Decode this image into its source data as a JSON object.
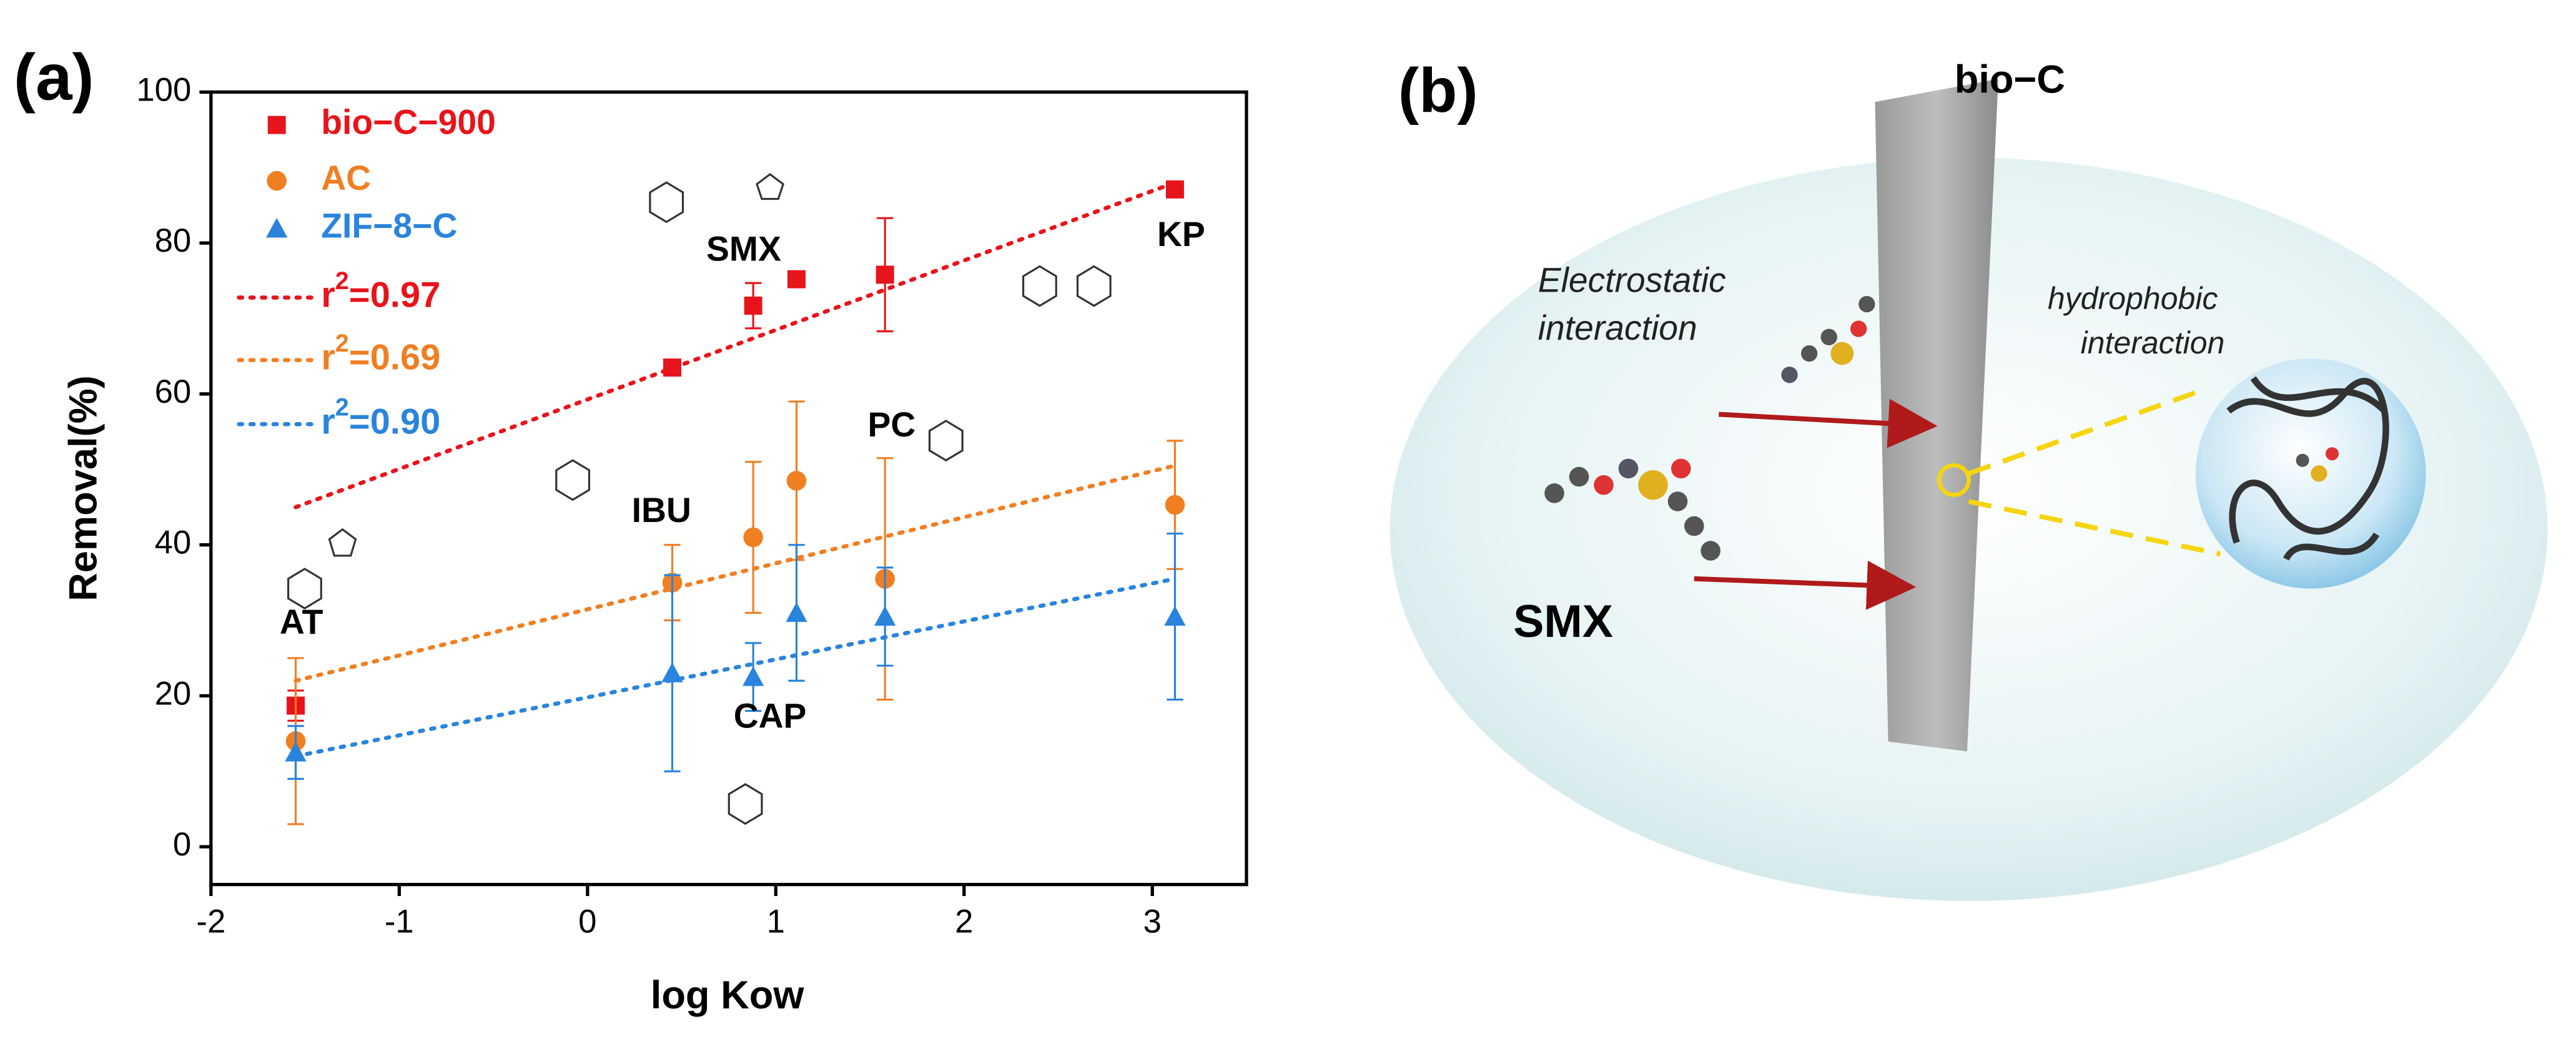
{
  "chart_data": {
    "type": "scatter",
    "panel_label": "(a)",
    "xlabel": "log Kow",
    "ylabel": "Removal(%)",
    "xlim": [
      -2,
      3.5
    ],
    "ylim": [
      -5,
      100
    ],
    "xticks": [
      -2,
      -1,
      0,
      1,
      2,
      3
    ],
    "yticks": [
      0,
      20,
      40,
      60,
      80,
      100
    ],
    "grid": false,
    "legend": "upper left",
    "x": [
      -1.55,
      0.45,
      0.88,
      1.11,
      1.58,
      3.12
    ],
    "series": [
      {
        "name": "bio−C−900",
        "color": "#e8141b",
        "marker": "square",
        "values": [
          18.7,
          63.5,
          71.7,
          75.2,
          75.8,
          87.1
        ],
        "errors": [
          2,
          0.5,
          3,
          0.8,
          7.5,
          0.8
        ],
        "fit": {
          "x": [
            -1.55,
            3.12
          ],
          "y": [
            45,
            88
          ]
        },
        "fit_label": [
          "r",
          "2",
          "=0.97"
        ]
      },
      {
        "name": "AC",
        "color": "#f07f22",
        "marker": "circle",
        "values": [
          14,
          35,
          41,
          48.5,
          35.5,
          45.3
        ],
        "errors": [
          11,
          5,
          10,
          10.5,
          16,
          8.5
        ],
        "fit": {
          "x": [
            -1.55,
            3.12
          ],
          "y": [
            22,
            50.5
          ]
        },
        "fit_label": [
          "r",
          "2",
          "=0.69"
        ]
      },
      {
        "name": "ZIF−8−C",
        "color": "#2a84dc",
        "marker": "triangle",
        "values": [
          12.5,
          23,
          22.5,
          31,
          30.5,
          30.5
        ],
        "errors": [
          3.5,
          13,
          4.5,
          9,
          6.5,
          11
        ],
        "fit": {
          "x": [
            -1.55,
            3.12
          ],
          "y": [
            12,
            35.5
          ]
        },
        "fit_label": [
          "r",
          "2",
          "=0.90"
        ]
      }
    ],
    "annotations": [
      "AT",
      "IBU",
      "SMX",
      "KP",
      "PC",
      "CAP"
    ]
  },
  "panel_b": {
    "label": "(b)",
    "material": "bio−C",
    "electrostatic": [
      "Electrostatic",
      "interaction"
    ],
    "hydrophobic": [
      "hydrophobic",
      "interaction"
    ],
    "molecule": "SMX"
  }
}
